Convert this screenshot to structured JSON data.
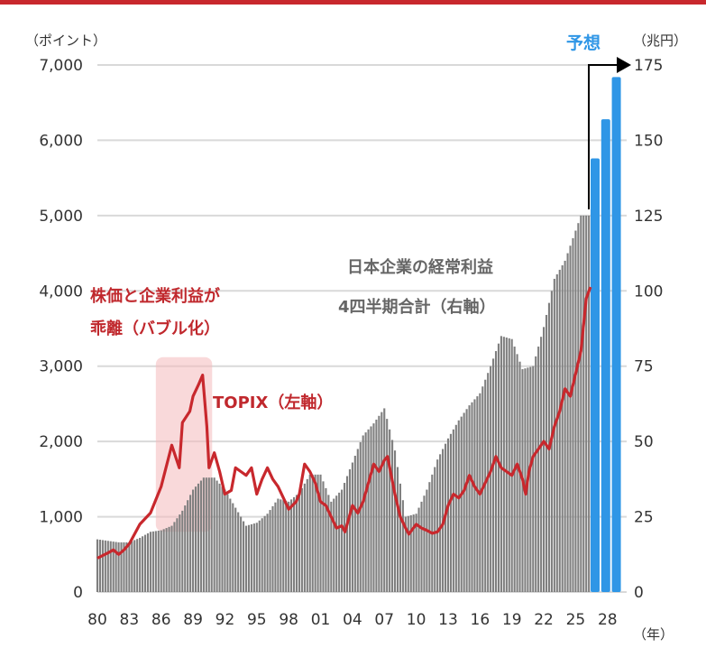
{
  "chart_data": {
    "type": "bar+line",
    "left_axis": {
      "unit_label": "（ポイント）",
      "ylim": [
        0,
        7000
      ],
      "ticks": [
        0,
        1000,
        2000,
        3000,
        4000,
        5000,
        6000,
        7000
      ],
      "tick_labels": [
        "0",
        "1,000",
        "2,000",
        "3,000",
        "4,000",
        "5,000",
        "6,000",
        "7,000"
      ]
    },
    "right_axis": {
      "unit_label": "（兆円）",
      "ylim": [
        0,
        175
      ],
      "ticks": [
        0,
        25,
        50,
        75,
        100,
        125,
        150,
        175
      ],
      "tick_labels": [
        "0",
        "25",
        "50",
        "75",
        "100",
        "125",
        "150",
        "175"
      ]
    },
    "x_axis": {
      "unit_label": "（年）",
      "range": [
        1980,
        2029.8
      ],
      "ticks": [
        1980,
        1983,
        1986,
        1989,
        1992,
        1995,
        1998,
        2001,
        2004,
        2007,
        2010,
        2013,
        2016,
        2019,
        2022,
        2025,
        2028
      ],
      "tick_labels": [
        "80",
        "83",
        "86",
        "89",
        "92",
        "95",
        "98",
        "01",
        "04",
        "07",
        "10",
        "13",
        "16",
        "19",
        "22",
        "25",
        "28"
      ]
    },
    "grid": true,
    "series": [
      {
        "name": "日本企業の経常利益 4四半期合計（右軸）",
        "type": "bar",
        "axis": "right",
        "x": [
          1980,
          1981,
          1982,
          1983,
          1984,
          1985,
          1986,
          1987,
          1988,
          1989,
          1990,
          1991,
          1992,
          1993,
          1994,
          1995,
          1996,
          1997,
          1998,
          1999,
          2000,
          2001,
          2002,
          2003,
          2004,
          2005,
          2006,
          2007,
          2008,
          2009,
          2010,
          2011,
          2012,
          2013,
          2014,
          2015,
          2016,
          2017,
          2018,
          2019,
          2020,
          2021,
          2022,
          2023,
          2024,
          2025.5
        ],
        "values": [
          17.5,
          17,
          16.5,
          16.5,
          18,
          20,
          20.5,
          22,
          27,
          34,
          38,
          38,
          34,
          28,
          22,
          23,
          26,
          31,
          30,
          33,
          39,
          39,
          30,
          34,
          43,
          52,
          56,
          61,
          47,
          25,
          26,
          34,
          44,
          51,
          57,
          62,
          66,
          75,
          85,
          84,
          74,
          75,
          88,
          104,
          110,
          125
        ]
      },
      {
        "name": "予想",
        "type": "bar",
        "axis": "right",
        "x": [
          2027,
          2028,
          2029
        ],
        "values": [
          144,
          157,
          171
        ]
      },
      {
        "name": "TOPIX（左軸）",
        "type": "line",
        "axis": "left",
        "x": [
          1980,
          1981,
          1981.5,
          1982,
          1982.5,
          1983,
          1984,
          1985,
          1986,
          1987,
          1987.7,
          1988,
          1988.7,
          1989,
          1989.5,
          1989.9,
          1990.3,
          1990.5,
          1991,
          1991.5,
          1992,
          1992.6,
          1993,
          1993.5,
          1994,
          1994.5,
          1995,
          1995.5,
          1996,
          1996.5,
          1997,
          1997.5,
          1998,
          1998.7,
          1999,
          1999.5,
          2000,
          2000.5,
          2001,
          2001.5,
          2002,
          2002.5,
          2003,
          2003.3,
          2004,
          2004.5,
          2005,
          2005.5,
          2006,
          2006.5,
          2007,
          2007.3,
          2008,
          2008.5,
          2009,
          2009.3,
          2010,
          2010.5,
          2011,
          2011.5,
          2012,
          2012.5,
          2013,
          2013.5,
          2014,
          2014.5,
          2015,
          2015.5,
          2016,
          2016.5,
          2017,
          2017.5,
          2018,
          2018.5,
          2019,
          2019.5,
          2020,
          2020.3,
          2020.6,
          2021,
          2021.5,
          2022,
          2022.5,
          2023,
          2023.5,
          2024,
          2024.5,
          2025,
          2025.5,
          2026,
          2026.4
        ],
        "values": [
          450,
          520,
          560,
          500,
          560,
          640,
          900,
          1050,
          1400,
          1950,
          1650,
          2250,
          2400,
          2600,
          2750,
          2881,
          2200,
          1650,
          1850,
          1600,
          1300,
          1350,
          1650,
          1600,
          1550,
          1650,
          1300,
          1500,
          1650,
          1500,
          1400,
          1250,
          1100,
          1200,
          1300,
          1700,
          1600,
          1450,
          1200,
          1150,
          1000,
          850,
          880,
          800,
          1150,
          1050,
          1200,
          1450,
          1700,
          1600,
          1750,
          1800,
          1300,
          1000,
          850,
          770,
          900,
          850,
          820,
          780,
          800,
          900,
          1150,
          1300,
          1250,
          1350,
          1550,
          1400,
          1300,
          1450,
          1600,
          1800,
          1650,
          1600,
          1550,
          1700,
          1500,
          1300,
          1600,
          1800,
          1900,
          2000,
          1900,
          2200,
          2400,
          2700,
          2600,
          2900,
          3200,
          3900,
          4050
        ]
      }
    ],
    "annotations": {
      "bubble_line1": "株価と企業利益が",
      "bubble_line2": "乖離（バブル化）",
      "profit_line1": "日本企業の経常利益",
      "profit_line2": "4四半期合計（右軸）",
      "topix_label": "TOPIX（左軸）",
      "forecast_label": "予想"
    },
    "colors": {
      "top_bar": "#c8282d",
      "actual_bars": "#7f7f7f",
      "forecast_bars": "#2f96e6",
      "topix_line": "#c8282d",
      "bubble_highlight": "#f4b9bb",
      "grid": "#d9d9d9"
    }
  }
}
